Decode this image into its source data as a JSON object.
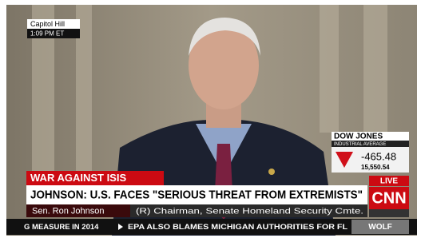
{
  "location": {
    "place": "Capitol Hill",
    "time": "1:09 PM ET"
  },
  "market": {
    "index": "DOW JONES",
    "subtitle": "INDUSTRIAL AVERAGE",
    "change": "-465.48",
    "level": "15,550.54"
  },
  "banner": {
    "topic": "WAR AGAINST ISIS",
    "headline": "JOHNSON: U.S. FACES \"SERIOUS THREAT FROM EXTREMISTS\"",
    "name": "Sen. Ron Johnson",
    "role": "(R) Chairman, Senate Homeland Security Cmte."
  },
  "network": {
    "live": "LIVE",
    "logo": "CNN"
  },
  "ticker": {
    "items": [
      "G MEASURE IN 2014",
      "EPA ALSO BLAMES MICHIGAN AUTHORITIES FOR FL"
    ],
    "show": "WOLF"
  }
}
